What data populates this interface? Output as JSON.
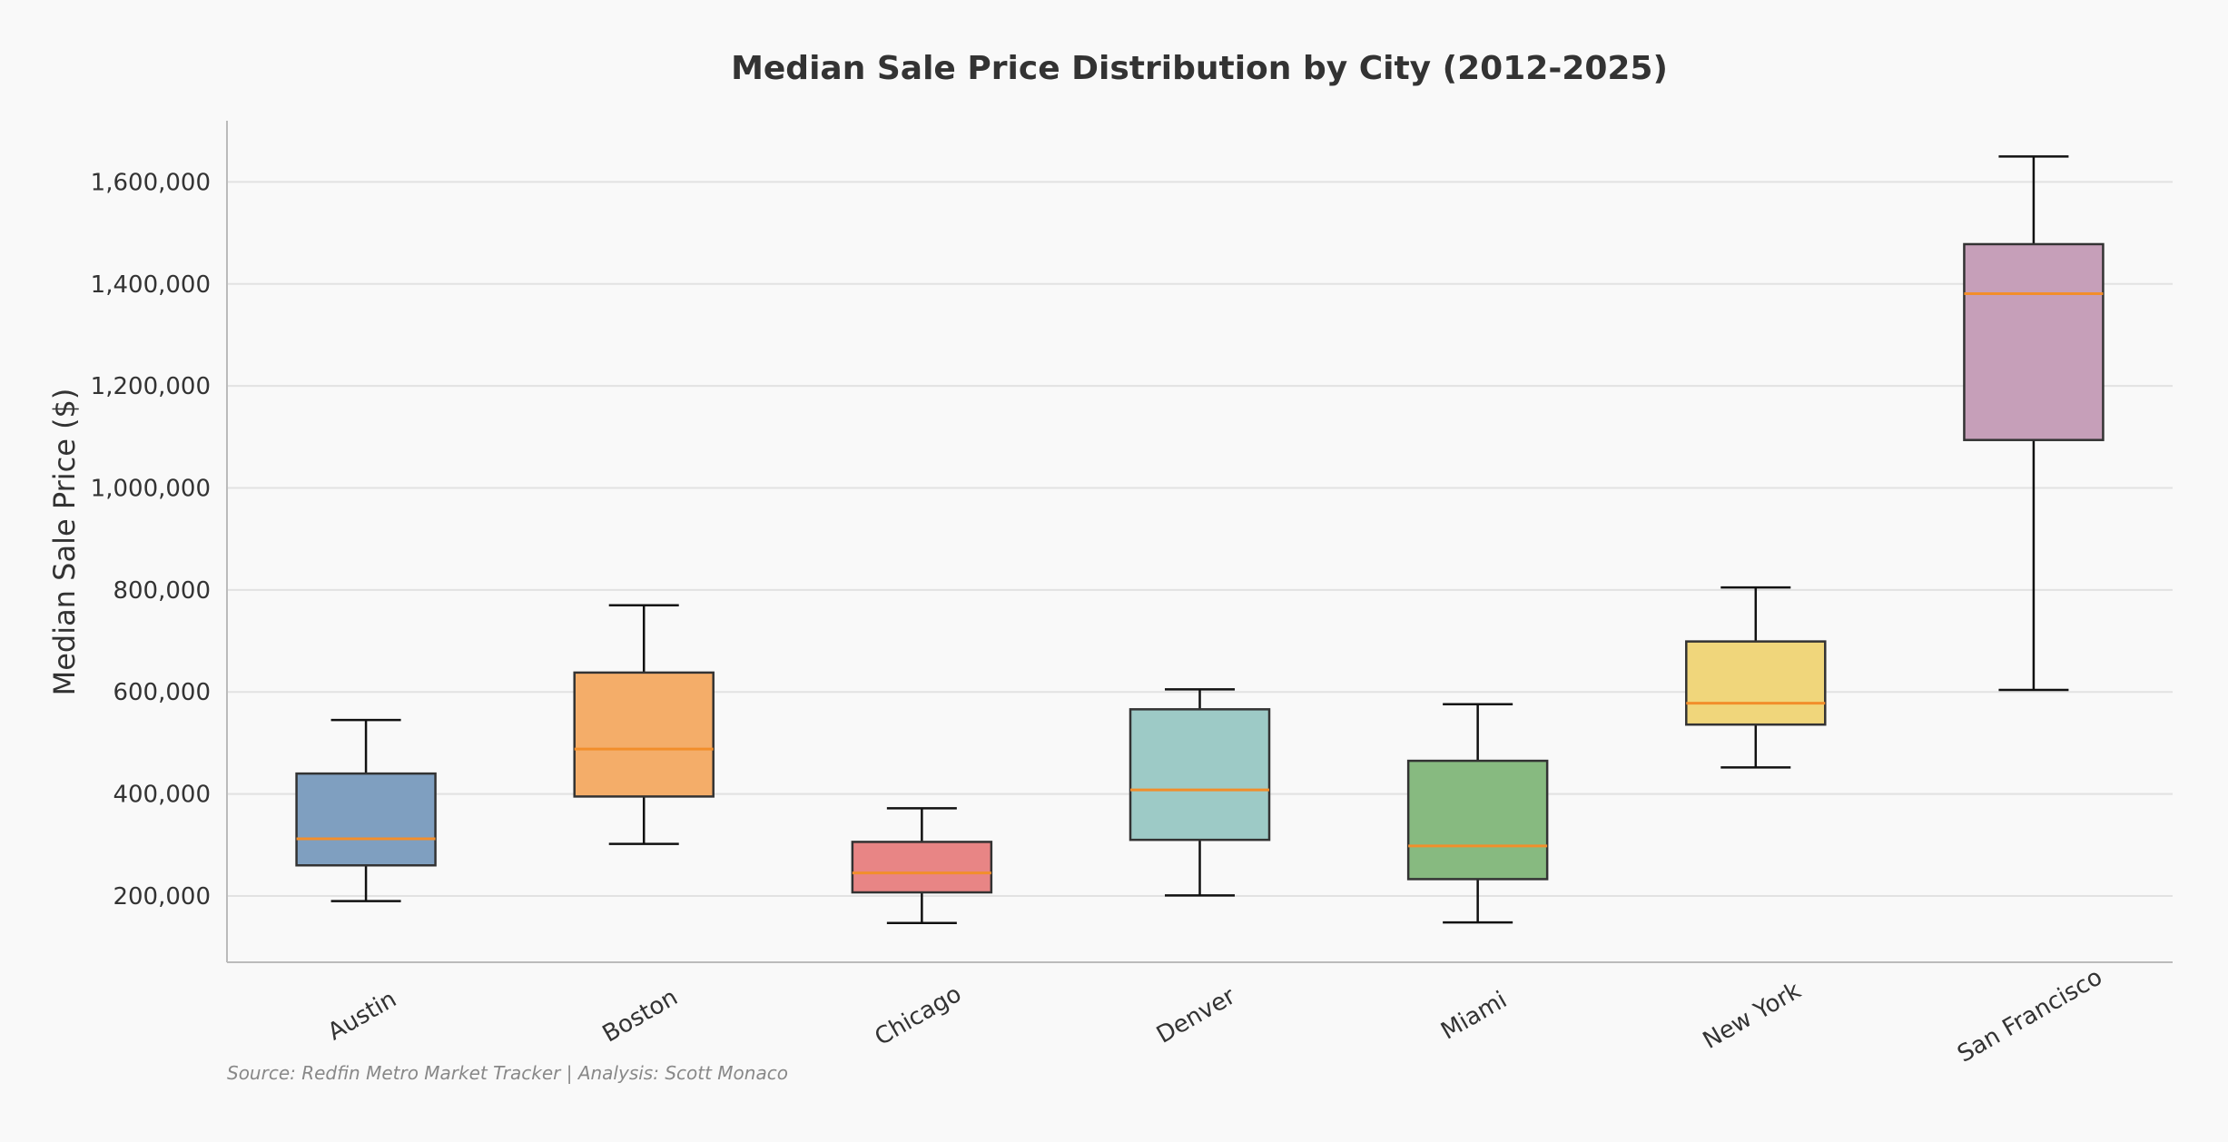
{
  "chart_data": {
    "type": "box",
    "title": "Median Sale Price Distribution by City (2012-2025)",
    "xlabel": "",
    "ylabel": "Median Sale Price ($)",
    "ylim": [
      70000,
      1720000
    ],
    "yticks": [
      200000,
      400000,
      600000,
      800000,
      1000000,
      1200000,
      1400000,
      1600000
    ],
    "ytick_labels": [
      "200,000",
      "400,000",
      "600,000",
      "800,000",
      "1,000,000",
      "1,200,000",
      "1,400,000",
      "1,600,000"
    ],
    "grid": true,
    "categories": [
      "Austin",
      "Boston",
      "Chicago",
      "Denver",
      "Miami",
      "New York",
      "San Francisco"
    ],
    "boxes": [
      {
        "category": "Austin",
        "whisker_low": 190000,
        "q1": 260000,
        "median": 312000,
        "q3": 440000,
        "whisker_high": 545000,
        "color": "#7f9fc0"
      },
      {
        "category": "Boston",
        "whisker_low": 302000,
        "q1": 395000,
        "median": 488000,
        "q3": 638000,
        "whisker_high": 770000,
        "color": "#f4ad69"
      },
      {
        "category": "Chicago",
        "whisker_low": 147000,
        "q1": 207000,
        "median": 245000,
        "q3": 306000,
        "whisker_high": 372000,
        "color": "#e88585"
      },
      {
        "category": "Denver",
        "whisker_low": 201000,
        "q1": 310000,
        "median": 408000,
        "q3": 566000,
        "whisker_high": 605000,
        "color": "#9dcac6"
      },
      {
        "category": "Miami",
        "whisker_low": 148000,
        "q1": 233000,
        "median": 298000,
        "q3": 465000,
        "whisker_high": 576000,
        "color": "#87ba80"
      },
      {
        "category": "New York",
        "whisker_low": 452000,
        "q1": 536000,
        "median": 578000,
        "q3": 699000,
        "whisker_high": 805000,
        "color": "#f0d67b"
      },
      {
        "category": "San Francisco",
        "whisker_low": 604000,
        "q1": 1094000,
        "median": 1381000,
        "q3": 1478000,
        "whisker_high": 1650000,
        "color": "#c69fb9"
      }
    ],
    "median_color": "#f28e2b",
    "source": "Source: Redfin Metro Market Tracker | Analysis: Scott Monaco"
  }
}
